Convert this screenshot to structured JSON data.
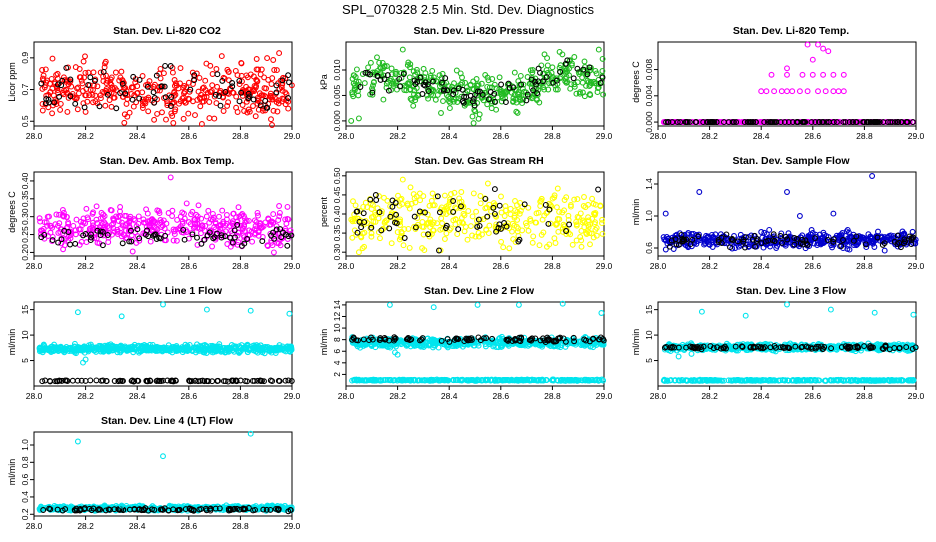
{
  "page_title": "SPL_070328  2.5 Min. Std. Dev. Diagnostics",
  "colors": {
    "red": "#ff0000",
    "green": "#22bb22",
    "magenta": "#ff00ff",
    "yellow": "#ffff00",
    "blue": "#0000cc",
    "cyan": "#00e5ee",
    "black": "#000000"
  },
  "chart_data": [
    {
      "type": "scatter",
      "title": "Stan. Dev. Li-820 CO2",
      "xlabel": "",
      "ylabel": "Licor ppm",
      "x_ticks": [
        "28.0",
        "28.2",
        "28.4",
        "28.6",
        "28.8",
        "29.0"
      ],
      "y_ticks": [
        "0.5",
        "0.7",
        "0.9"
      ],
      "xlim": [
        28.0,
        29.0
      ],
      "ylim": [
        0.47,
        1.0
      ],
      "series": [
        {
          "name": "primary",
          "color": "red",
          "base": 0.69,
          "spread": 0.08,
          "trend": 0.0,
          "density": 420
        },
        {
          "name": "secondary",
          "color": "black",
          "base": 0.71,
          "spread": 0.07,
          "trend": 0.0,
          "density": 70
        }
      ],
      "outliers": [
        [
          28.35,
          0.49
        ],
        [
          28.07,
          0.55
        ],
        [
          28.68,
          0.52
        ],
        [
          28.95,
          0.93
        ]
      ]
    },
    {
      "type": "scatter",
      "title": "Stan. Dev. Li-820 Pressure",
      "xlabel": "",
      "ylabel": "kPa",
      "x_ticks": [
        "28.0",
        "28.2",
        "28.4",
        "28.6",
        "28.8",
        "29.0"
      ],
      "y_ticks": [
        "0.000",
        "0.005",
        "0.010"
      ],
      "xlim": [
        28.0,
        29.0
      ],
      "ylim": [
        -0.001,
        0.0155
      ],
      "series": [
        {
          "name": "primary",
          "color": "green",
          "base": 0.0065,
          "spread": 0.0018,
          "trend": "wave",
          "density": 420
        },
        {
          "name": "secondary",
          "color": "black",
          "base": 0.0065,
          "spread": 0.0012,
          "trend": "wave",
          "density": 80
        }
      ],
      "outliers": [
        [
          28.22,
          0.014
        ],
        [
          28.98,
          0.014
        ],
        [
          28.05,
          0.0005
        ],
        [
          28.12,
          0.0125
        ],
        [
          28.02,
          0.0
        ]
      ]
    },
    {
      "type": "scatter",
      "title": "Stan. Dev. Li-820 Temp.",
      "xlabel": "",
      "ylabel": "degrees C",
      "x_ticks": [
        "28.0",
        "28.2",
        "28.4",
        "28.6",
        "28.8",
        "29.0"
      ],
      "y_ticks": [
        "0.000",
        "0.004",
        "0.008"
      ],
      "xlim": [
        28.0,
        29.0
      ],
      "ylim": [
        -0.0006,
        0.0122
      ],
      "series": [
        {
          "name": "baseline",
          "color": "magenta",
          "base": 0.0,
          "spread": 0.0,
          "trend": 0.0,
          "density": 300
        },
        {
          "name": "baseline-secondary",
          "color": "black",
          "base": 0.0,
          "spread": 0.0,
          "trend": 0.0,
          "density": 120
        }
      ],
      "outliers": [
        [
          28.4,
          0.0047
        ],
        [
          28.42,
          0.0047
        ],
        [
          28.45,
          0.0047
        ],
        [
          28.48,
          0.0047
        ],
        [
          28.5,
          0.0047
        ],
        [
          28.52,
          0.0047
        ],
        [
          28.55,
          0.0047
        ],
        [
          28.58,
          0.0047
        ],
        [
          28.62,
          0.0047
        ],
        [
          28.65,
          0.0047
        ],
        [
          28.68,
          0.0047
        ],
        [
          28.7,
          0.0047
        ],
        [
          28.72,
          0.0047
        ],
        [
          28.44,
          0.0072
        ],
        [
          28.5,
          0.0072
        ],
        [
          28.56,
          0.0072
        ],
        [
          28.6,
          0.0072
        ],
        [
          28.64,
          0.0072
        ],
        [
          28.68,
          0.0072
        ],
        [
          28.72,
          0.0072
        ],
        [
          28.6,
          0.0095
        ],
        [
          28.62,
          0.0118
        ],
        [
          28.64,
          0.0112
        ],
        [
          28.66,
          0.0108
        ],
        [
          28.5,
          0.0082
        ],
        [
          28.58,
          0.0118
        ]
      ],
      "outlier_colors": [
        "magenta"
      ]
    },
    {
      "type": "scatter",
      "title": "Stan. Dev. Amb. Box Temp.",
      "xlabel": "",
      "ylabel": "degrees C",
      "x_ticks": [
        "28.0",
        "28.2",
        "28.4",
        "28.6",
        "28.8",
        "29.0"
      ],
      "y_ticks": [
        "0.20",
        "0.25",
        "0.30",
        "0.35",
        "0.40"
      ],
      "xlim": [
        28.0,
        29.0
      ],
      "ylim": [
        0.19,
        0.425
      ],
      "series": [
        {
          "name": "primary",
          "color": "magenta",
          "base": 0.27,
          "spread": 0.025,
          "trend": 0.0,
          "density": 420
        },
        {
          "name": "secondary",
          "color": "black",
          "base": 0.245,
          "spread": 0.012,
          "trend": 0.0,
          "density": 70
        }
      ],
      "outliers": [
        [
          28.53,
          0.41
        ],
        [
          28.95,
          0.33
        ],
        [
          28.93,
          0.2
        ]
      ]
    },
    {
      "type": "scatter",
      "title": "Stan. Dev. Gas Stream RH",
      "xlabel": "",
      "ylabel": "percent",
      "x_ticks": [
        "28.0",
        "28.2",
        "28.4",
        "28.6",
        "28.8",
        "29.0"
      ],
      "y_ticks": [
        "0.30",
        "0.35",
        "0.40",
        "0.45",
        "0.50"
      ],
      "xlim": [
        28.0,
        29.0
      ],
      "ylim": [
        0.29,
        0.51
      ],
      "series": [
        {
          "name": "primary",
          "color": "yellow",
          "base": 0.39,
          "spread": 0.035,
          "trend": 0.0,
          "density": 380
        },
        {
          "name": "secondary",
          "color": "black",
          "base": 0.39,
          "spread": 0.035,
          "trend": 0.0,
          "density": 60
        }
      ],
      "outliers": [
        [
          28.22,
          0.49
        ],
        [
          28.25,
          0.47
        ],
        [
          28.55,
          0.48
        ],
        [
          28.05,
          0.3
        ]
      ]
    },
    {
      "type": "scatter",
      "title": "Stan. Dev. Sample Flow",
      "xlabel": "",
      "ylabel": "ml/min",
      "x_ticks": [
        "28.0",
        "28.2",
        "28.4",
        "28.6",
        "28.8",
        "29.0"
      ],
      "y_ticks": [
        "0.6",
        "1.0",
        "1.4"
      ],
      "xlim": [
        28.0,
        29.0
      ],
      "ylim": [
        0.5,
        1.55
      ],
      "series": [
        {
          "name": "primary",
          "color": "blue",
          "base": 0.7,
          "spread": 0.05,
          "trend": 0.0,
          "density": 420
        },
        {
          "name": "secondary",
          "color": "black",
          "base": 0.68,
          "spread": 0.04,
          "trend": 0.0,
          "density": 80
        }
      ],
      "outliers": [
        [
          28.16,
          1.3
        ],
        [
          28.5,
          1.3
        ],
        [
          28.83,
          1.5
        ],
        [
          28.03,
          1.03
        ],
        [
          28.68,
          1.03
        ],
        [
          28.55,
          1.0
        ]
      ]
    },
    {
      "type": "scatter",
      "title": "Stan. Dev. Line 1 Flow",
      "xlabel": "",
      "ylabel": "ml/min",
      "x_ticks": [
        "28.0",
        "28.2",
        "28.4",
        "28.6",
        "28.8",
        "29.0"
      ],
      "y_ticks": [
        "5",
        "10",
        "15"
      ],
      "xlim": [
        28.0,
        29.0
      ],
      "ylim": [
        0.0,
        16.5
      ],
      "series": [
        {
          "name": "primary",
          "color": "cyan",
          "base": 7.3,
          "spread": 0.35,
          "trend": 0.0,
          "density": 600
        },
        {
          "name": "secondary",
          "color": "black",
          "base": 1.0,
          "spread": 0.05,
          "trend": 0.0,
          "density": 100
        }
      ],
      "outliers": [
        [
          28.17,
          14.5
        ],
        [
          28.34,
          13.7
        ],
        [
          28.5,
          16.0
        ],
        [
          28.67,
          15.0
        ],
        [
          28.84,
          14.8
        ],
        [
          28.99,
          14.2
        ],
        [
          28.2,
          5.2
        ],
        [
          28.19,
          4.6
        ]
      ]
    },
    {
      "type": "scatter",
      "title": "Stan. Dev. Line 2 Flow",
      "xlabel": "",
      "ylabel": "ml/min",
      "x_ticks": [
        "28.0",
        "28.2",
        "28.4",
        "28.6",
        "28.8",
        "29.0"
      ],
      "y_ticks": [
        "2",
        "4",
        "6",
        "8",
        "10",
        "12",
        "14"
      ],
      "xlim": [
        28.0,
        29.0
      ],
      "ylim": [
        0.0,
        14.5
      ],
      "series": [
        {
          "name": "primary",
          "color": "cyan",
          "base": 7.5,
          "spread": 0.4,
          "trend": 0.0,
          "density": 550
        },
        {
          "name": "floor",
          "color": "cyan",
          "base": 1.0,
          "spread": 0.05,
          "trend": 0.0,
          "density": 300
        },
        {
          "name": "secondary",
          "color": "black",
          "base": 8.0,
          "spread": 0.2,
          "trend": 0.0,
          "density": 100
        }
      ],
      "outliers": [
        [
          28.17,
          14.0
        ],
        [
          28.34,
          13.6
        ],
        [
          28.51,
          14.0
        ],
        [
          28.67,
          14.0
        ],
        [
          28.84,
          14.2
        ],
        [
          28.99,
          12.6
        ],
        [
          28.19,
          5.8
        ],
        [
          28.2,
          5.4
        ]
      ]
    },
    {
      "type": "scatter",
      "title": "Stan. Dev. Line 3 Flow",
      "xlabel": "",
      "ylabel": "ml/min",
      "x_ticks": [
        "28.0",
        "28.2",
        "28.4",
        "28.6",
        "28.8",
        "29.0"
      ],
      "y_ticks": [
        "5",
        "10",
        "15"
      ],
      "xlim": [
        28.0,
        29.0
      ],
      "ylim": [
        0.0,
        16.5
      ],
      "series": [
        {
          "name": "primary",
          "color": "cyan",
          "base": 7.6,
          "spread": 0.3,
          "trend": 0.0,
          "density": 550
        },
        {
          "name": "floor",
          "color": "cyan",
          "base": 1.1,
          "spread": 0.05,
          "trend": 0.0,
          "density": 300
        },
        {
          "name": "secondary",
          "color": "black",
          "base": 7.6,
          "spread": 0.15,
          "trend": 0.0,
          "density": 100
        }
      ],
      "outliers": [
        [
          28.17,
          14.6
        ],
        [
          28.34,
          13.8
        ],
        [
          28.5,
          16.0
        ],
        [
          28.67,
          15.0
        ],
        [
          28.84,
          14.4
        ],
        [
          28.99,
          14.0
        ],
        [
          28.08,
          5.8
        ],
        [
          28.13,
          6.3
        ]
      ]
    },
    {
      "type": "scatter",
      "title": "Stan. Dev. Line 4 (LT) Flow",
      "xlabel": "",
      "ylabel": "ml/min",
      "x_ticks": [
        "28.0",
        "28.2",
        "28.4",
        "28.6",
        "28.8",
        "29.0"
      ],
      "y_ticks": [
        "0.2",
        "0.4",
        "0.6",
        "0.8",
        "1.0"
      ],
      "xlim": [
        28.0,
        29.0
      ],
      "ylim": [
        0.18,
        1.15
      ],
      "series": [
        {
          "name": "primary",
          "color": "cyan",
          "base": 0.27,
          "spread": 0.012,
          "trend": 0.0,
          "density": 550
        },
        {
          "name": "secondary",
          "color": "black",
          "base": 0.255,
          "spread": 0.008,
          "trend": 0.0,
          "density": 100
        }
      ],
      "outliers": [
        [
          28.17,
          1.04
        ],
        [
          28.5,
          0.87
        ],
        [
          28.84,
          1.13
        ],
        [
          28.34,
          0.3
        ]
      ]
    }
  ]
}
